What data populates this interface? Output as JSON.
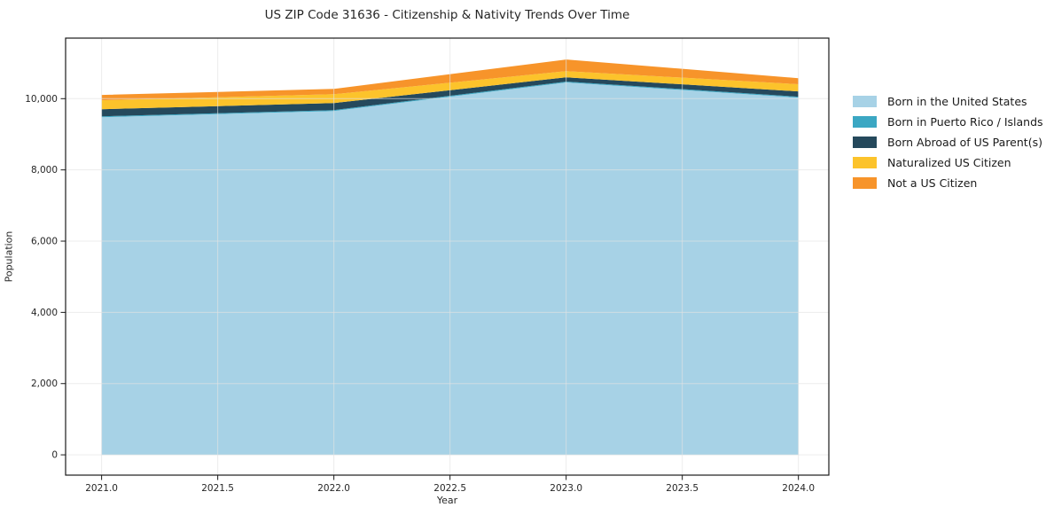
{
  "title": "US ZIP Code 31636 - Citizenship & Nativity Trends Over Time",
  "chart_data": {
    "type": "area",
    "stacked": true,
    "title": "US ZIP Code 31636 - Citizenship & Nativity Trends Over Time",
    "xlabel": "Year",
    "ylabel": "Population",
    "x": [
      2021,
      2022,
      2023,
      2024
    ],
    "series": [
      {
        "name": "Born in the United States",
        "color": "#a7d2e6",
        "values": [
          9480,
          9655,
          10455,
          10030
        ]
      },
      {
        "name": "Born in Puerto Rico / Islands",
        "color": "#3ba7c3",
        "values": [
          25,
          25,
          25,
          25
        ]
      },
      {
        "name": "Born Abroad of US Parent(s)",
        "color": "#25495c",
        "values": [
          200,
          195,
          120,
          150
        ]
      },
      {
        "name": "Naturalized US Citizen",
        "color": "#fcc32b",
        "values": [
          250,
          250,
          175,
          200
        ]
      },
      {
        "name": "Not a US Citizen",
        "color": "#f7942a",
        "values": [
          150,
          150,
          325,
          170
        ]
      }
    ],
    "xlim": [
      2020.845,
      2024.131
    ],
    "ylim": [
      -570,
      11700
    ],
    "xticks": [
      2021.0,
      2021.5,
      2022.0,
      2022.5,
      2023.0,
      2023.5,
      2024.0
    ],
    "yticks": [
      0,
      2000,
      4000,
      6000,
      8000,
      10000
    ],
    "grid": true,
    "legend_position": "right-outside"
  },
  "style_colors": {
    "spine": "#1a1a1a",
    "tick_text": "#262626",
    "gridline": "#e3e3e3",
    "background": "#ffffff"
  }
}
